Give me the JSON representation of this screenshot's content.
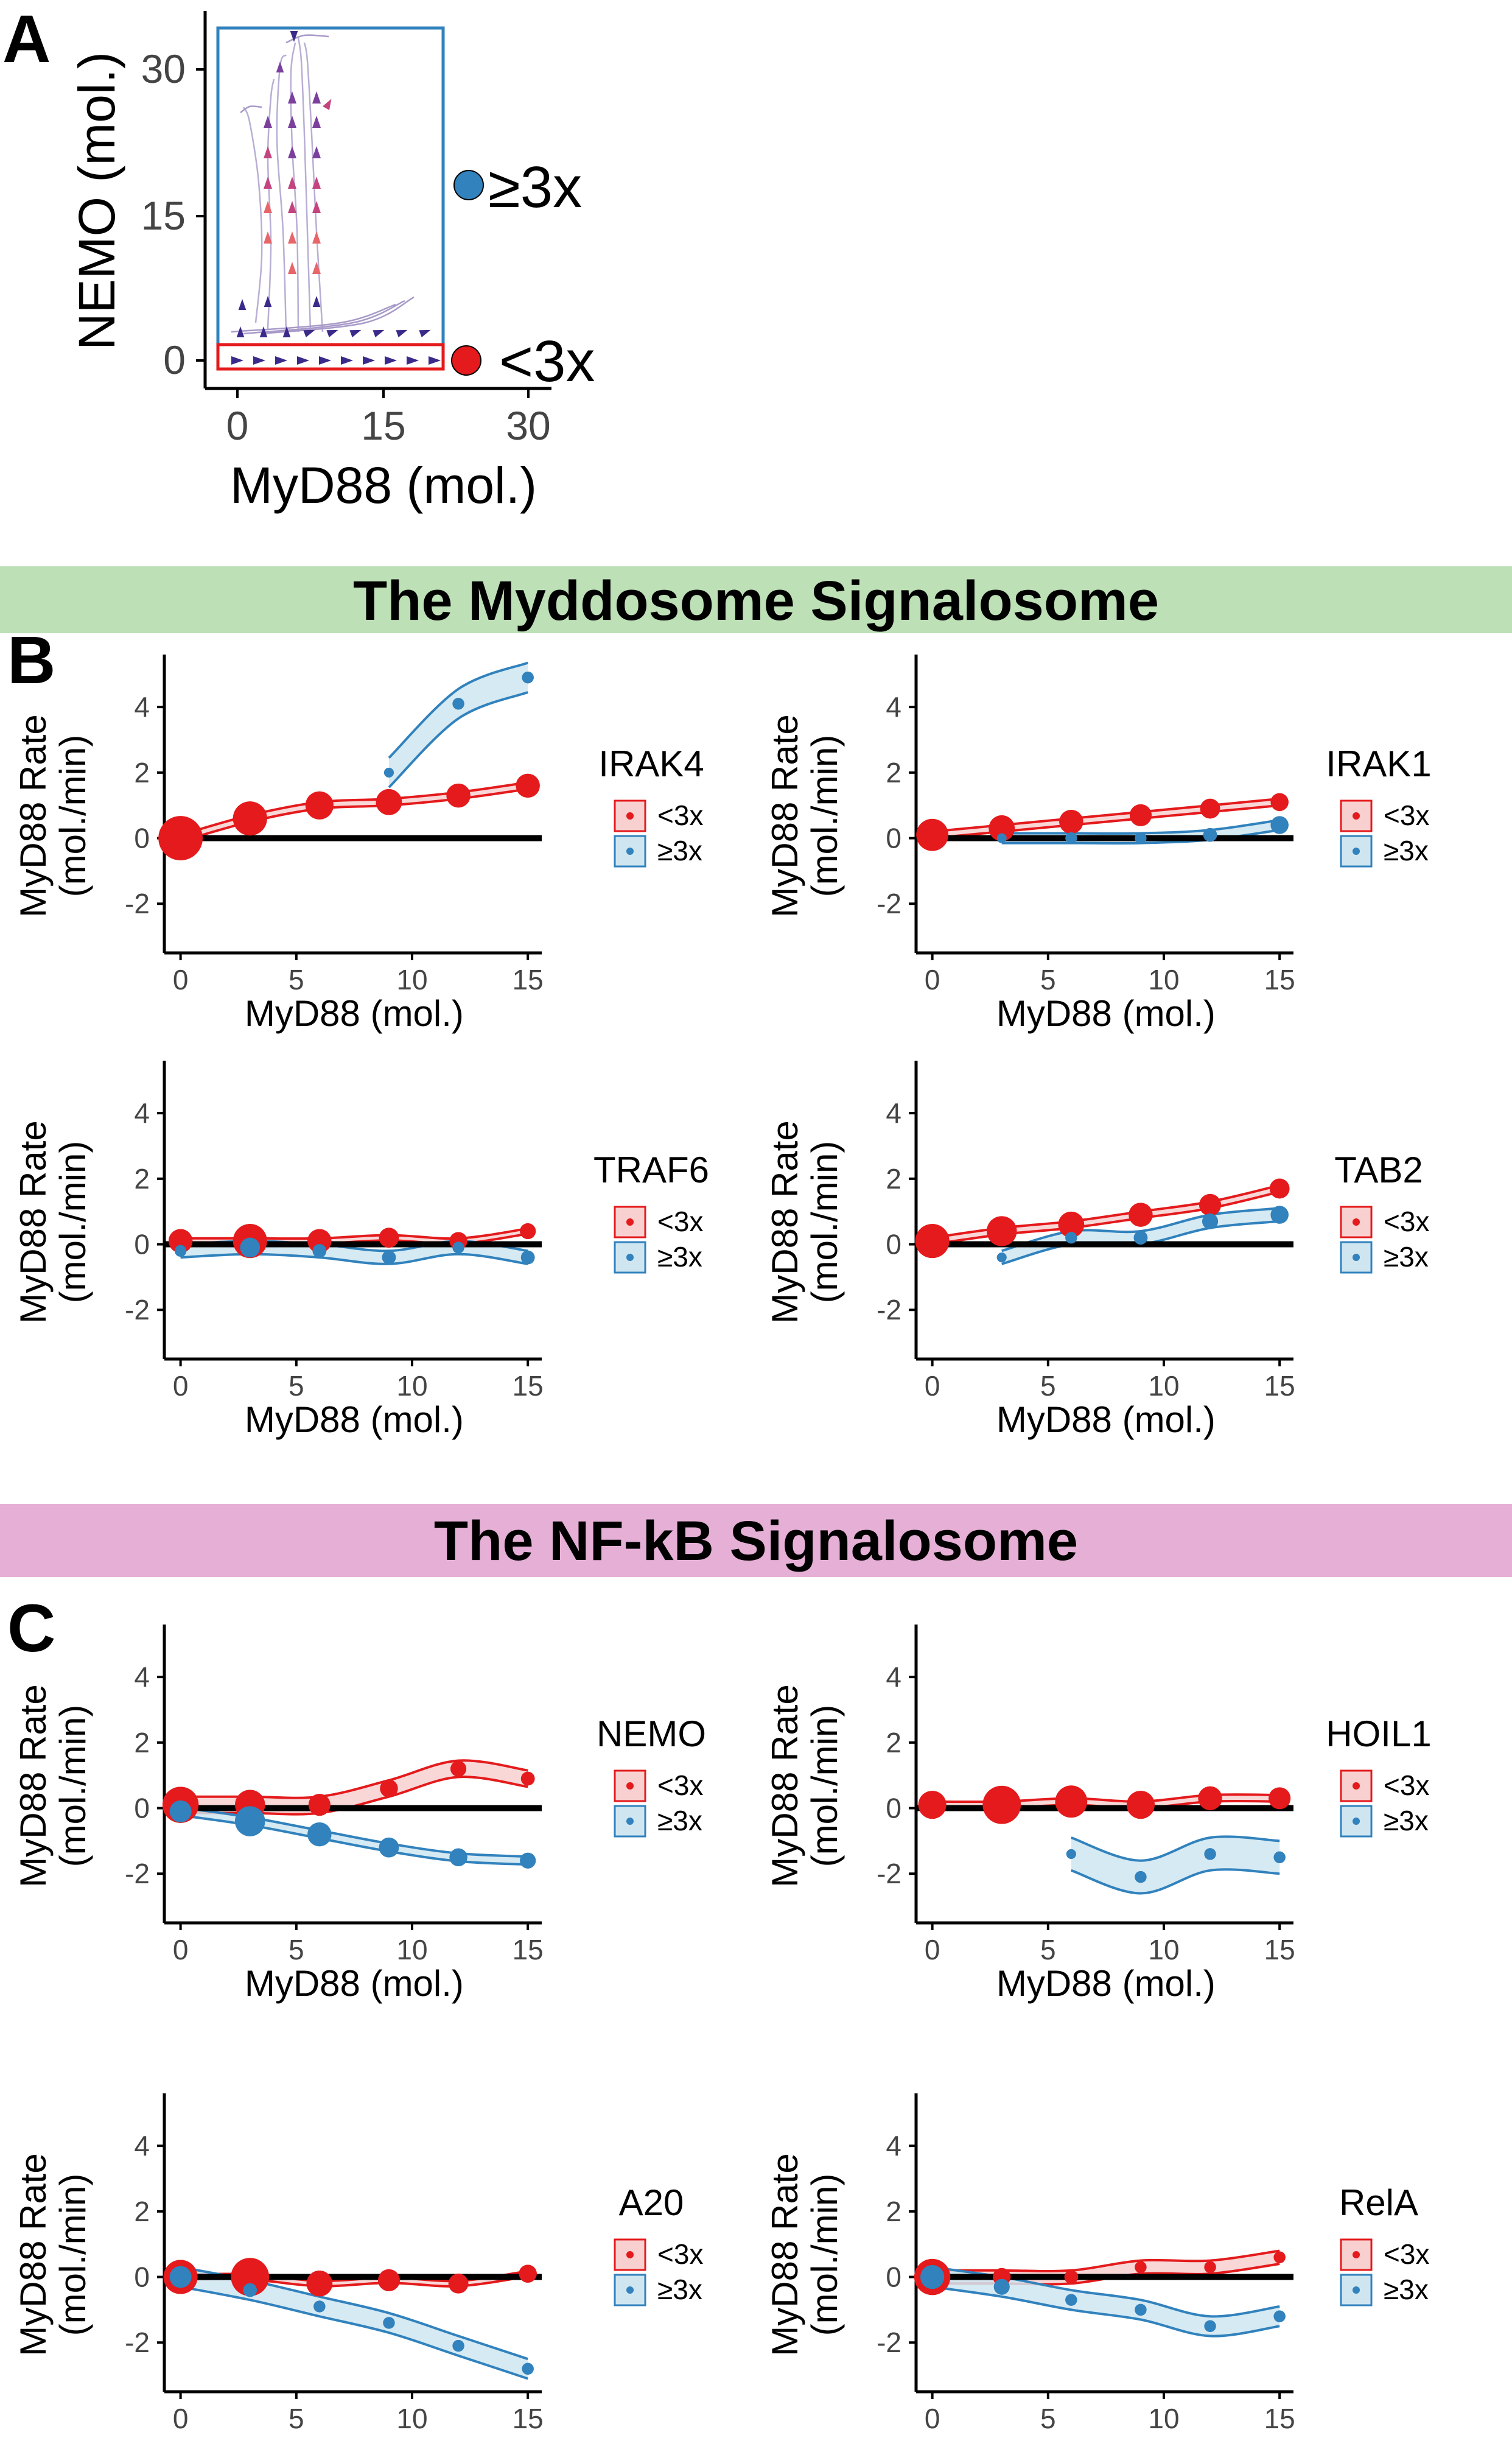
{
  "panel_labels": {
    "a": "A",
    "b": "B",
    "c": "C"
  },
  "banners": {
    "myddosome": "The Myddosome Signalosome",
    "nfkb": "The NF-kB Signalosome"
  },
  "colors": {
    "red": "#e41a1c",
    "red_fill": "#f8d0d0",
    "blue": "#3182bd",
    "blue_fill": "#cfe6f1",
    "purple": "#5b3b8f",
    "banner_green": "#bde0b6",
    "banner_pink": "#e6b0d6"
  },
  "panel_a": {
    "xlabel": "MyD88 (mol.)",
    "ylabel": "NEMO (mol.)",
    "xticks": [
      "0",
      "15",
      "30"
    ],
    "yticks": [
      "0",
      "15",
      "30"
    ],
    "legend": [
      {
        "label": "≥3x",
        "color": "#3182bd"
      },
      {
        "label": "<3x",
        "color": "#e41a1c"
      }
    ]
  },
  "small_axes": {
    "xlabel": "MyD88 (mol.)",
    "ylabel_line1": "MyD88 Rate",
    "ylabel_line2": "(mol./min)",
    "xticks": [
      "0",
      "5",
      "10",
      "15"
    ],
    "yticks": [
      "4",
      "2",
      "0",
      "-2"
    ],
    "legend_labels": [
      "<3x",
      "≥3x"
    ]
  },
  "chart_data": [
    {
      "type": "scatter",
      "title": "A",
      "xlabel": "MyD88 (mol.)",
      "ylabel": "NEMO (mol.)",
      "xlim": [
        -2,
        33
      ],
      "ylim": [
        -2,
        35
      ],
      "regions": [
        {
          "name": "≥3x",
          "x": [
            -1,
            21
          ],
          "y": [
            1,
            34
          ]
        },
        {
          "name": "<3x",
          "x": [
            -1,
            21
          ],
          "y": [
            -0.8,
            1.6
          ]
        }
      ]
    },
    {
      "type": "line",
      "section": "The Myddosome Signalosome",
      "title": "IRAK4",
      "xlabel": "MyD88 (mol.)",
      "ylabel": "MyD88 Rate (mol./min)",
      "xlim": [
        -0.7,
        15.6
      ],
      "ylim": [
        -3.5,
        5.6
      ],
      "x": [
        0,
        3,
        6,
        9,
        12,
        15
      ],
      "series": [
        {
          "name": "<3x",
          "values": [
            0.0,
            0.6,
            1.0,
            1.1,
            1.3,
            1.6
          ],
          "spread": 0.1,
          "sizes": [
            40,
            30,
            24,
            22,
            20,
            20
          ]
        },
        {
          "name": "≥3x",
          "x": [
            9,
            12,
            15
          ],
          "values": [
            2.0,
            4.1,
            4.9
          ],
          "spread": 0.45,
          "sizes": [
            6,
            8,
            8
          ]
        }
      ]
    },
    {
      "type": "line",
      "section": "The Myddosome Signalosome",
      "title": "IRAK1",
      "xlabel": "MyD88 (mol.)",
      "ylabel": "MyD88 Rate (mol./min)",
      "xlim": [
        -0.7,
        15.6
      ],
      "ylim": [
        -3.5,
        5.6
      ],
      "x": [
        0,
        3,
        6,
        9,
        12,
        15
      ],
      "series": [
        {
          "name": "<3x",
          "values": [
            0.1,
            0.3,
            0.5,
            0.7,
            0.9,
            1.1
          ],
          "spread": 0.1,
          "sizes": [
            28,
            22,
            20,
            18,
            16,
            14
          ]
        },
        {
          "name": "≥3x",
          "x": [
            3,
            6,
            9,
            12,
            15
          ],
          "values": [
            0.0,
            0.0,
            0.0,
            0.1,
            0.4
          ],
          "spread": 0.15,
          "sizes": [
            6,
            8,
            8,
            10,
            14
          ]
        }
      ]
    },
    {
      "type": "line",
      "section": "The Myddosome Signalosome",
      "title": "TRAF6",
      "xlabel": "MyD88 (mol.)",
      "ylabel": "MyD88 Rate (mol./min)",
      "xlim": [
        -0.7,
        15.6
      ],
      "ylim": [
        -3.5,
        5.6
      ],
      "x": [
        0,
        3,
        6,
        9,
        12,
        15
      ],
      "series": [
        {
          "name": "<3x",
          "values": [
            0.1,
            0.1,
            0.1,
            0.2,
            0.1,
            0.4
          ],
          "spread": 0.08,
          "sizes": [
            20,
            30,
            20,
            16,
            14,
            12
          ]
        },
        {
          "name": "≥3x",
          "values": [
            -0.2,
            -0.1,
            -0.2,
            -0.4,
            -0.1,
            -0.4
          ],
          "spread": 0.2,
          "sizes": [
            8,
            16,
            10,
            10,
            8,
            10
          ]
        }
      ]
    },
    {
      "type": "line",
      "section": "The Myddosome Signalosome",
      "title": "TAB2",
      "xlabel": "MyD88 (mol.)",
      "ylabel": "MyD88 Rate (mol./min)",
      "xlim": [
        -0.7,
        15.6
      ],
      "ylim": [
        -3.5,
        5.6
      ],
      "x": [
        0,
        3,
        6,
        9,
        12,
        15
      ],
      "series": [
        {
          "name": "<3x",
          "values": [
            0.1,
            0.4,
            0.6,
            0.9,
            1.2,
            1.7
          ],
          "spread": 0.1,
          "sizes": [
            30,
            26,
            22,
            20,
            18,
            16
          ]
        },
        {
          "name": "≥3x",
          "x": [
            3,
            6,
            9,
            12,
            15
          ],
          "values": [
            -0.4,
            0.2,
            0.2,
            0.7,
            0.9
          ],
          "spread": 0.2,
          "sizes": [
            6,
            8,
            10,
            12,
            14
          ]
        }
      ]
    },
    {
      "type": "line",
      "section": "The NF-kB Signalosome",
      "title": "NEMO",
      "xlabel": "MyD88 (mol.)",
      "ylabel": "MyD88 Rate (mol./min)",
      "xlim": [
        -0.7,
        15.6
      ],
      "ylim": [
        -3.5,
        5.6
      ],
      "x": [
        0,
        3,
        6,
        9,
        12,
        15
      ],
      "series": [
        {
          "name": "<3x",
          "values": [
            0.1,
            0.1,
            0.1,
            0.6,
            1.2,
            0.9
          ],
          "spread": 0.25,
          "sizes": [
            32,
            26,
            18,
            14,
            12,
            10
          ]
        },
        {
          "name": "≥3x",
          "values": [
            -0.1,
            -0.4,
            -0.8,
            -1.2,
            -1.5,
            -1.6
          ],
          "spread": 0.12,
          "sizes": [
            18,
            26,
            20,
            16,
            14,
            12
          ]
        }
      ]
    },
    {
      "type": "line",
      "section": "The NF-kB Signalosome",
      "title": "HOIL1",
      "xlabel": "MyD88 (mol.)",
      "ylabel": "MyD88 Rate (mol./min)",
      "xlim": [
        -0.7,
        15.6
      ],
      "ylim": [
        -3.5,
        5.6
      ],
      "x": [
        0,
        3,
        6,
        9,
        12,
        15
      ],
      "series": [
        {
          "name": "<3x",
          "values": [
            0.1,
            0.1,
            0.2,
            0.1,
            0.3,
            0.3
          ],
          "spread": 0.1,
          "sizes": [
            24,
            34,
            28,
            24,
            20,
            18
          ]
        },
        {
          "name": "≥3x",
          "x": [
            6,
            9,
            12,
            15
          ],
          "values": [
            -1.4,
            -2.1,
            -1.4,
            -1.5
          ],
          "spread": 0.5,
          "sizes": [
            6,
            8,
            8,
            8
          ]
        }
      ]
    },
    {
      "type": "line",
      "section": "The NF-kB Signalosome",
      "title": "A20",
      "xlabel": "MyD88 (mol.)",
      "ylabel": "MyD88 Rate (mol./min)",
      "xlim": [
        -0.7,
        15.6
      ],
      "ylim": [
        -3.5,
        5.6
      ],
      "x": [
        0,
        3,
        6,
        9,
        12,
        15
      ],
      "series": [
        {
          "name": "<3x",
          "values": [
            0.0,
            0.0,
            -0.2,
            -0.1,
            -0.2,
            0.1
          ],
          "spread": 0.08,
          "sizes": [
            30,
            34,
            22,
            18,
            16,
            14
          ]
        },
        {
          "name": "≥3x",
          "values": [
            0.0,
            -0.4,
            -0.9,
            -1.4,
            -2.1,
            -2.8
          ],
          "spread": 0.3,
          "sizes": [
            18,
            10,
            8,
            8,
            8,
            8
          ]
        }
      ]
    },
    {
      "type": "line",
      "section": "The NF-kB Signalosome",
      "title": "RelA",
      "xlabel": "MyD88 (mol.)",
      "ylabel": "MyD88 Rate (mol./min)",
      "xlim": [
        -0.7,
        15.6
      ],
      "ylim": [
        -3.5,
        5.6
      ],
      "x": [
        0,
        3,
        6,
        9,
        12,
        15
      ],
      "series": [
        {
          "name": "<3x",
          "values": [
            0.0,
            0.0,
            0.0,
            0.3,
            0.3,
            0.6
          ],
          "spread": 0.2,
          "sizes": [
            32,
            14,
            10,
            8,
            8,
            8
          ]
        },
        {
          "name": "≥3x",
          "values": [
            0.0,
            -0.3,
            -0.7,
            -1.0,
            -1.5,
            -1.2
          ],
          "spread": 0.3,
          "sizes": [
            20,
            12,
            8,
            8,
            8,
            8
          ]
        }
      ]
    }
  ]
}
